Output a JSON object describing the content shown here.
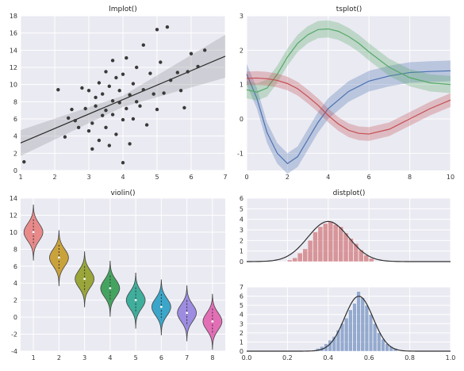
{
  "chart_data": [
    {
      "type": "scatter",
      "title": "lmplot()",
      "xlim": [
        1,
        7
      ],
      "ylim": [
        0,
        18
      ],
      "xticks": [
        "1",
        "2",
        "3",
        "4",
        "5",
        "6",
        "7"
      ],
      "yticks": [
        "0",
        "2",
        "4",
        "6",
        "8",
        "10",
        "12",
        "14",
        "16",
        "18"
      ],
      "grid": true,
      "regression": {
        "x": [
          1,
          7
        ],
        "y": [
          3.2,
          13.3
        ]
      },
      "ci_band": {
        "x": [
          1,
          4,
          7
        ],
        "lower": [
          1.7,
          7.4,
          10.8
        ],
        "upper": [
          4.7,
          8.7,
          15.8
        ]
      },
      "points": [
        [
          1.1,
          1.0
        ],
        [
          2.1,
          9.4
        ],
        [
          2.3,
          3.9
        ],
        [
          2.4,
          6.1
        ],
        [
          2.5,
          7.1
        ],
        [
          2.6,
          5.8
        ],
        [
          2.7,
          5.0
        ],
        [
          2.8,
          9.6
        ],
        [
          2.9,
          7.2
        ],
        [
          3.0,
          9.3
        ],
        [
          3.0,
          4.6
        ],
        [
          3.1,
          2.5
        ],
        [
          3.1,
          5.5
        ],
        [
          3.2,
          8.5
        ],
        [
          3.2,
          7.5
        ],
        [
          3.3,
          10.2
        ],
        [
          3.3,
          3.5
        ],
        [
          3.4,
          6.4
        ],
        [
          3.4,
          8.9
        ],
        [
          3.5,
          11.5
        ],
        [
          3.5,
          7.0
        ],
        [
          3.5,
          5.0
        ],
        [
          3.6,
          9.8
        ],
        [
          3.6,
          2.9
        ],
        [
          3.7,
          8.1
        ],
        [
          3.7,
          12.8
        ],
        [
          3.7,
          6.5
        ],
        [
          3.8,
          10.8
        ],
        [
          3.8,
          4.2
        ],
        [
          3.9,
          7.9
        ],
        [
          3.9,
          9.3
        ],
        [
          4.0,
          11.2
        ],
        [
          4.0,
          0.9
        ],
        [
          4.0,
          5.9
        ],
        [
          4.1,
          7.2
        ],
        [
          4.1,
          13.1
        ],
        [
          4.2,
          8.8
        ],
        [
          4.2,
          3.1
        ],
        [
          4.3,
          10.1
        ],
        [
          4.3,
          6.0
        ],
        [
          4.4,
          12.0
        ],
        [
          4.4,
          8.0
        ],
        [
          4.5,
          7.5
        ],
        [
          4.6,
          14.6
        ],
        [
          4.6,
          9.4
        ],
        [
          4.7,
          5.3
        ],
        [
          4.8,
          11.3
        ],
        [
          4.9,
          8.9
        ],
        [
          5.0,
          16.4
        ],
        [
          5.0,
          7.1
        ],
        [
          5.1,
          12.6
        ],
        [
          5.2,
          9.0
        ],
        [
          5.3,
          16.7
        ],
        [
          5.4,
          10.5
        ],
        [
          5.6,
          11.4
        ],
        [
          5.7,
          9.3
        ],
        [
          5.8,
          7.3
        ],
        [
          5.9,
          11.5
        ],
        [
          6.0,
          13.6
        ],
        [
          6.2,
          12.1
        ],
        [
          6.4,
          14.0
        ]
      ]
    },
    {
      "type": "line",
      "title": "tsplot()",
      "xlim": [
        0,
        10
      ],
      "ylim": [
        -1.5,
        3
      ],
      "xticks": [
        "0",
        "2",
        "4",
        "6",
        "8",
        "10"
      ],
      "yticks": [
        "-1",
        "0",
        "1",
        "2",
        "3"
      ],
      "grid": true,
      "series": [
        {
          "color": "#4c72b0",
          "x": [
            0,
            0.5,
            1,
            1.5,
            2,
            2.5,
            3,
            3.5,
            4,
            4.5,
            5,
            6,
            7,
            8,
            9,
            10
          ],
          "y": [
            1.3,
            0.6,
            -0.4,
            -1.0,
            -1.3,
            -1.1,
            -0.6,
            -0.1,
            0.3,
            0.55,
            0.8,
            1.1,
            1.25,
            1.35,
            1.38,
            1.4
          ],
          "band": 0.3
        },
        {
          "color": "#55a868",
          "x": [
            0,
            0.5,
            1,
            1.5,
            2,
            2.5,
            3,
            3.5,
            4,
            4.5,
            5,
            5.5,
            6,
            7,
            8,
            9,
            10
          ],
          "y": [
            0.85,
            0.78,
            0.9,
            1.3,
            1.8,
            2.2,
            2.45,
            2.6,
            2.62,
            2.55,
            2.4,
            2.2,
            1.95,
            1.5,
            1.2,
            1.05,
            1.0
          ],
          "band": 0.25
        },
        {
          "color": "#c44e52",
          "x": [
            0,
            0.5,
            1,
            1.5,
            2,
            2.5,
            3,
            3.5,
            4,
            4.5,
            5,
            5.5,
            6,
            7,
            8,
            9,
            10
          ],
          "y": [
            1.18,
            1.19,
            1.17,
            1.12,
            1.03,
            0.88,
            0.65,
            0.4,
            0.1,
            -0.15,
            -0.33,
            -0.42,
            -0.44,
            -0.3,
            0.0,
            0.3,
            0.55
          ],
          "band": 0.2
        }
      ]
    },
    {
      "type": "violin",
      "title": "violin()",
      "categories": [
        "1",
        "2",
        "3",
        "4",
        "5",
        "6",
        "7",
        "8"
      ],
      "ylim": [
        -4,
        14
      ],
      "yticks": [
        "-4",
        "-2",
        "0",
        "2",
        "4",
        "6",
        "8",
        "10",
        "12",
        "14"
      ],
      "grid": true,
      "series": [
        {
          "center": 10,
          "spread": 1.0,
          "color": "#e88a8a"
        },
        {
          "center": 7,
          "spread": 1.0,
          "color": "#c9a23c"
        },
        {
          "center": 4.5,
          "spread": 1.0,
          "color": "#9aa63a"
        },
        {
          "center": 3.4,
          "spread": 1.0,
          "color": "#45a360"
        },
        {
          "center": 2,
          "spread": 1.0,
          "color": "#3fae9c"
        },
        {
          "center": 1.2,
          "spread": 1.0,
          "color": "#3ba6c9"
        },
        {
          "center": 0.5,
          "spread": 1.0,
          "color": "#9d8ce0"
        },
        {
          "center": -0.5,
          "spread": 1.0,
          "color": "#e26fb6"
        }
      ]
    },
    {
      "type": "histogram",
      "title": "distplot()",
      "xlim": [
        0,
        1
      ],
      "ylim": [
        0,
        6
      ],
      "yticks": [
        "0",
        "1",
        "2",
        "3",
        "4",
        "5",
        "6"
      ],
      "color": "#c44e52",
      "kde": {
        "mean": 0.4,
        "sd": 0.1,
        "peak": 3.8
      },
      "bin_width": 0.025,
      "bins": [
        [
          0.2,
          0.15
        ],
        [
          0.225,
          0.35
        ],
        [
          0.25,
          0.8
        ],
        [
          0.275,
          1.2
        ],
        [
          0.3,
          2.0
        ],
        [
          0.325,
          2.8
        ],
        [
          0.35,
          3.3
        ],
        [
          0.375,
          3.6
        ],
        [
          0.4,
          3.8
        ],
        [
          0.425,
          3.5
        ],
        [
          0.45,
          3.3
        ],
        [
          0.475,
          2.7
        ],
        [
          0.5,
          2.2
        ],
        [
          0.525,
          1.7
        ],
        [
          0.55,
          1.1
        ],
        [
          0.575,
          0.6
        ],
        [
          0.6,
          0.3
        ]
      ]
    },
    {
      "type": "histogram",
      "xlim": [
        0,
        1
      ],
      "ylim": [
        0,
        7
      ],
      "xticks": [
        "0.0",
        "0.2",
        "0.4",
        "0.6",
        "0.8",
        "1.0"
      ],
      "yticks": [
        "0",
        "1",
        "2",
        "3",
        "4",
        "5",
        "6",
        "7"
      ],
      "color": "#4c72b0",
      "kde": {
        "mean": 0.55,
        "sd": 0.07,
        "peak": 6.0
      },
      "bin_width": 0.02,
      "bins": [
        [
          0.32,
          0.1
        ],
        [
          0.34,
          0.3
        ],
        [
          0.36,
          0.5
        ],
        [
          0.38,
          0.8
        ],
        [
          0.4,
          1.2
        ],
        [
          0.42,
          1.6
        ],
        [
          0.44,
          2.3
        ],
        [
          0.46,
          3.0
        ],
        [
          0.48,
          3.6
        ],
        [
          0.5,
          4.5
        ],
        [
          0.52,
          5.2
        ],
        [
          0.54,
          6.5
        ],
        [
          0.56,
          5.8
        ],
        [
          0.58,
          5.0
        ],
        [
          0.6,
          4.0
        ],
        [
          0.62,
          3.0
        ],
        [
          0.64,
          2.0
        ],
        [
          0.66,
          1.3
        ],
        [
          0.68,
          0.8
        ],
        [
          0.7,
          0.5
        ],
        [
          0.72,
          0.3
        ]
      ]
    }
  ]
}
